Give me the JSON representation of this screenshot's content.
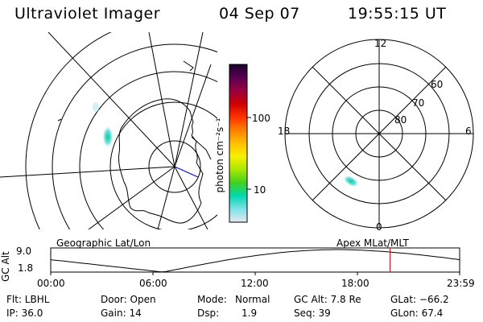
{
  "header": {
    "instrument": "Ultraviolet Imager",
    "date": "04 Sep 07",
    "time": "19:55:15 UT"
  },
  "colorbar": {
    "label": "photon cm⁻²s⁻¹",
    "ticks": [
      "100",
      "10"
    ],
    "stops": [
      "#1a0030",
      "#5a0050",
      "#9a0040",
      "#d00000",
      "#ff3000",
      "#ff8000",
      "#ffc000",
      "#f8f000",
      "#a8e800",
      "#40d020",
      "#00d8b0",
      "#80e0e8",
      "#e8e8f0"
    ]
  },
  "left_map": {
    "projection_label": "Geographic Lat/Lon"
  },
  "right_map": {
    "projection_label": "Apex MLat/MLT",
    "mlt_labels": {
      "top": "12",
      "bottom": "0",
      "left": "18",
      "right": "6"
    },
    "lat_labels": [
      "60",
      "70",
      "80"
    ]
  },
  "altitude_plot": {
    "ylabel": "GC Alt",
    "y_ticks": [
      "9.0",
      "1.8"
    ],
    "x_ticks": [
      "00:00",
      "06:00",
      "12:00",
      "18:00",
      "23:59"
    ],
    "marker_time": "19:55",
    "marker_color": "#cc0000"
  },
  "info": {
    "row1": {
      "filter": "Flt: LBHL",
      "door": "Door: Open",
      "mode_label": "Mode:",
      "mode_value": "Normal",
      "gcalt": "GC Alt: 7.8 Re",
      "glat": "GLat: −66.2"
    },
    "row2": {
      "ip": "IP: 36.0",
      "gain": "Gain: 14",
      "dsp_label": "Dsp:",
      "dsp_value": "1.9",
      "seq": "Seq: 39",
      "glon": "GLon: 67.4"
    }
  }
}
